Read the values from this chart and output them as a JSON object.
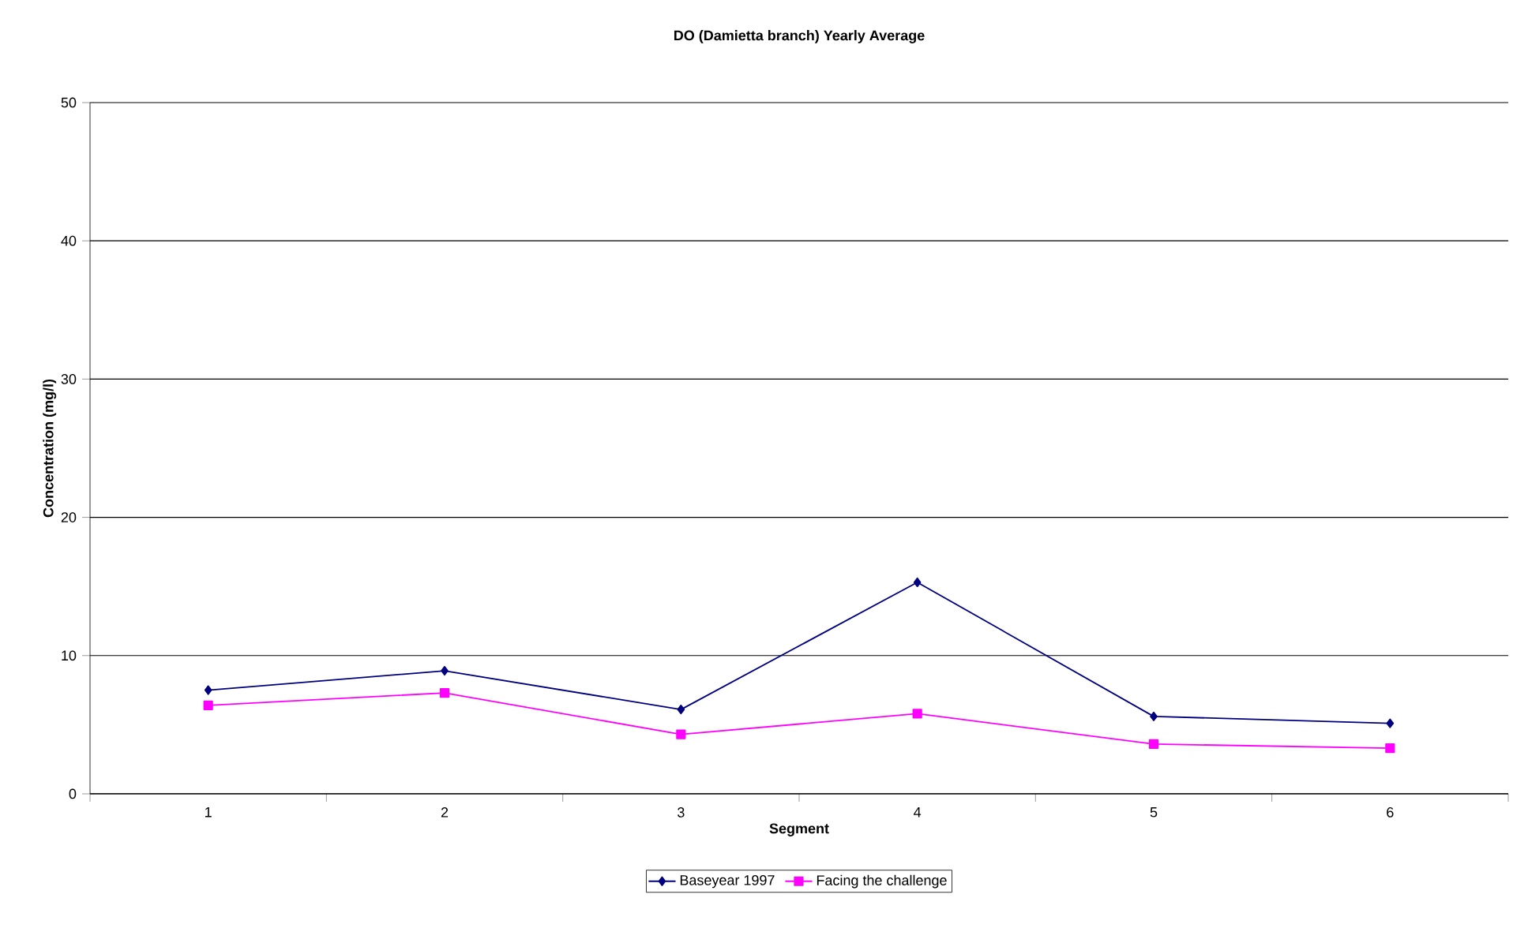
{
  "chart_data": {
    "type": "line",
    "title": "DO (Damietta branch) Yearly Average",
    "xlabel": "Segment",
    "ylabel": "Concentration (mg/l)",
    "categories": [
      "1",
      "2",
      "3",
      "4",
      "5",
      "6"
    ],
    "series": [
      {
        "name": "Baseyear 1997",
        "color": "#000080",
        "marker": "diamond",
        "values": [
          7.5,
          8.9,
          6.1,
          15.3,
          5.6,
          5.1
        ]
      },
      {
        "name": "Facing the challenge",
        "color": "#ff00ff",
        "marker": "square",
        "values": [
          6.4,
          7.3,
          4.3,
          5.8,
          3.6,
          3.3
        ]
      }
    ],
    "ylim": [
      0,
      50
    ],
    "yticks": [
      0,
      10,
      20,
      30,
      40,
      50
    ],
    "grid": "y",
    "legend": "bottom"
  }
}
